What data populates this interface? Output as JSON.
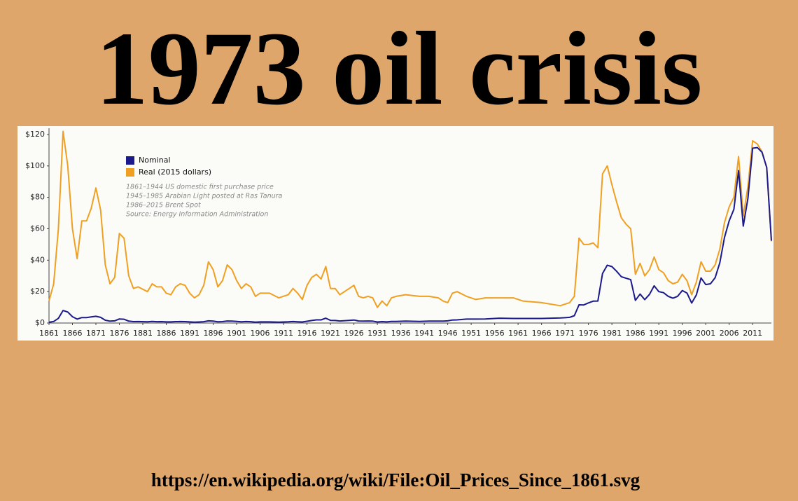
{
  "title": "1973 oil crisis",
  "footer": "https://en.wikipedia.org/wiki/File:Oil_Prices_Since_1861.svg",
  "chart_data": {
    "type": "line",
    "x": [
      1861,
      1862,
      1863,
      1864,
      1865,
      1866,
      1867,
      1868,
      1869,
      1870,
      1871,
      1872,
      1873,
      1874,
      1875,
      1876,
      1877,
      1878,
      1879,
      1880,
      1882,
      1883,
      1884,
      1885,
      1886,
      1887,
      1888,
      1889,
      1890,
      1891,
      1892,
      1893,
      1894,
      1895,
      1896,
      1897,
      1898,
      1899,
      1900,
      1901,
      1902,
      1903,
      1904,
      1905,
      1906,
      1908,
      1910,
      1912,
      1913,
      1914,
      1915,
      1916,
      1917,
      1918,
      1919,
      1920,
      1921,
      1922,
      1923,
      1925,
      1926,
      1927,
      1928,
      1929,
      1930,
      1931,
      1932,
      1933,
      1934,
      1935,
      1937,
      1940,
      1942,
      1944,
      1945,
      1946,
      1947,
      1948,
      1950,
      1952,
      1954,
      1957,
      1960,
      1962,
      1966,
      1970,
      1971,
      1972,
      1973,
      1974,
      1975,
      1976,
      1977,
      1978,
      1979,
      1980,
      1981,
      1982,
      1983,
      1984,
      1985,
      1986,
      1987,
      1988,
      1989,
      1990,
      1991,
      1992,
      1993,
      1994,
      1995,
      1996,
      1997,
      1998,
      1999,
      2000,
      2001,
      2002,
      2003,
      2004,
      2005,
      2006,
      2007,
      2008,
      2009,
      2010,
      2011,
      2012,
      2013,
      2014,
      2015
    ],
    "series": [
      {
        "name": "Nominal",
        "color": "#1a1a8c",
        "values": [
          0.5,
          1,
          3,
          8,
          7,
          4,
          2.5,
          3.5,
          3.5,
          3.9,
          4.3,
          3.6,
          1.8,
          1.2,
          1.4,
          2.6,
          2.4,
          1.2,
          0.9,
          0.95,
          0.8,
          1.0,
          0.85,
          0.9,
          0.7,
          0.7,
          0.9,
          0.95,
          0.9,
          0.7,
          0.55,
          0.65,
          0.85,
          1.4,
          1.2,
          0.8,
          0.9,
          1.3,
          1.2,
          1.0,
          0.8,
          0.95,
          0.85,
          0.6,
          0.7,
          0.7,
          0.6,
          0.75,
          0.95,
          0.8,
          0.65,
          1.1,
          1.6,
          2.0,
          2.0,
          3.1,
          1.7,
          1.6,
          1.3,
          1.7,
          1.9,
          1.3,
          1.2,
          1.3,
          1.2,
          0.65,
          0.9,
          0.7,
          1.0,
          1.0,
          1.2,
          1.0,
          1.2,
          1.2,
          1.2,
          1.4,
          1.9,
          2.0,
          2.5,
          2.5,
          2.6,
          3.1,
          2.9,
          2.9,
          2.9,
          3.2,
          3.4,
          3.6,
          4.7,
          11.6,
          11.5,
          12.8,
          13.9,
          14.0,
          31.6,
          36.8,
          35.9,
          32.9,
          29.5,
          28.5,
          27.6,
          14.4,
          18.4,
          14.9,
          18.2,
          23.7,
          20.0,
          19.3,
          17.0,
          15.8,
          17.0,
          20.7,
          19.1,
          12.7,
          17.9,
          28.7,
          24.5,
          25.0,
          28.8,
          38.3,
          54.5,
          65.1,
          72.4,
          97.0,
          61.7,
          79.5,
          111.3,
          111.7,
          108.7,
          99.0,
          52.4
        ]
      },
      {
        "name": "Real (2015 dollars)",
        "color": "#f0a020",
        "values": [
          14,
          25,
          60,
          122,
          100,
          60,
          41,
          65,
          65,
          73,
          86,
          72,
          37,
          25,
          29,
          57,
          54,
          30,
          22,
          23,
          20,
          25,
          23,
          23,
          19,
          18,
          23,
          25,
          24,
          19,
          16,
          18,
          24,
          39,
          34,
          23,
          27,
          37,
          34,
          27,
          22,
          25,
          23,
          17,
          19,
          19,
          16,
          18,
          22,
          19,
          15,
          24,
          29,
          31,
          28,
          36,
          22,
          22,
          18,
          22,
          24,
          17,
          16,
          17,
          16,
          10,
          14,
          11,
          16,
          17,
          18,
          17,
          17,
          16,
          14,
          13,
          19,
          20,
          17,
          15,
          16,
          16,
          16,
          14,
          13,
          11,
          12,
          13,
          17,
          54,
          50,
          50,
          51,
          48,
          95,
          100,
          88,
          77,
          67,
          63,
          60,
          31,
          38,
          30,
          34,
          42,
          34,
          32,
          27,
          25,
          26,
          31,
          27,
          18,
          26,
          39,
          33,
          33,
          37,
          47,
          64,
          74,
          80,
          106,
          68,
          87,
          116,
          114,
          109,
          99,
          52
        ]
      }
    ],
    "annotations": [
      "1861–1944 US domestic first purchase price",
      "1945–1985 Arabian Light posted at Ras Tanura",
      "1986–2015 Brent Spot",
      "Source: Energy Information Administration"
    ],
    "xlim": [
      1861,
      2015
    ],
    "xticks": [
      1861,
      1866,
      1871,
      1876,
      1881,
      1886,
      1891,
      1896,
      1901,
      1906,
      1911,
      1916,
      1921,
      1926,
      1931,
      1936,
      1941,
      1946,
      1951,
      1956,
      1961,
      1966,
      1971,
      1976,
      1981,
      1986,
      1991,
      1996,
      2001,
      2006,
      2011
    ],
    "ylim": [
      0,
      124
    ],
    "yticks": [
      {
        "value": 0,
        "label": "$0"
      },
      {
        "value": 20,
        "label": "$20"
      },
      {
        "value": 40,
        "label": "$40"
      },
      {
        "value": 60,
        "label": "$60"
      },
      {
        "value": 80,
        "label": "$80"
      },
      {
        "value": 100,
        "label": "$100"
      },
      {
        "value": 120,
        "label": "$120"
      }
    ],
    "grid": false,
    "legend": "top-left"
  }
}
